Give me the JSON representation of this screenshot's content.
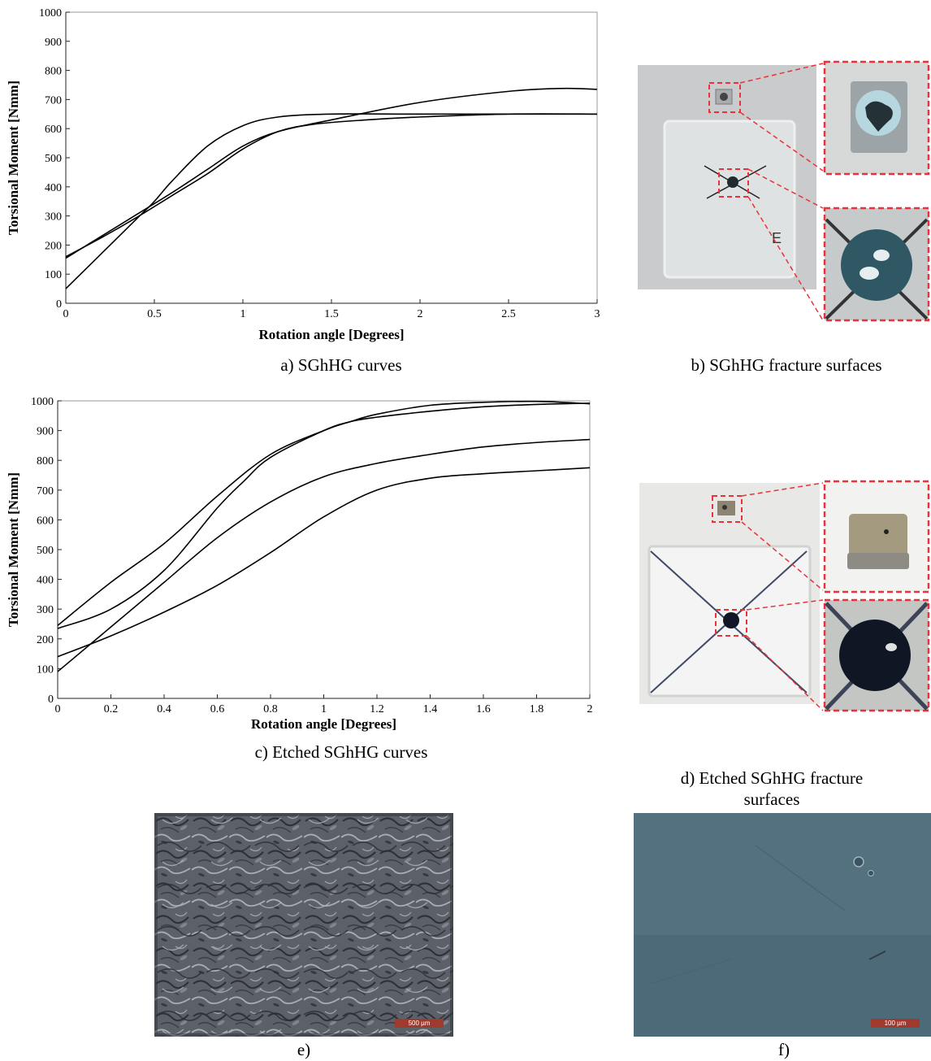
{
  "chart_data": [
    {
      "type": "line",
      "title": "",
      "xlabel": "Rotation angle [Degrees]",
      "ylabel": "Torsional Moment [Nmm]",
      "xlim": [
        0,
        3
      ],
      "ylim": [
        0,
        1000
      ],
      "xticks": [
        "0",
        "0.5",
        "1",
        "1.5",
        "2",
        "2.5",
        "3"
      ],
      "yticks": [
        "0",
        "100",
        "200",
        "300",
        "400",
        "500",
        "600",
        "700",
        "800",
        "900",
        "1000"
      ],
      "grid": false,
      "series": [
        {
          "x": [
            0,
            0.2,
            0.4,
            0.6,
            0.8,
            1.0,
            1.2,
            1.4,
            1.7,
            2.0,
            2.5,
            3.0
          ],
          "y": [
            160,
            225,
            295,
            370,
            445,
            530,
            590,
            615,
            630,
            640,
            650,
            650
          ]
        },
        {
          "x": [
            0,
            0.2,
            0.4,
            0.5,
            0.6,
            0.8,
            1.0,
            1.2,
            1.5,
            2.0,
            3.0
          ],
          "y": [
            50,
            170,
            290,
            350,
            420,
            540,
            610,
            640,
            650,
            650,
            650
          ]
        },
        {
          "x": [
            0,
            0.2,
            0.4,
            0.6,
            0.8,
            1.0,
            1.2,
            1.5,
            2.0,
            2.5,
            2.8,
            3.0
          ],
          "y": [
            155,
            230,
            305,
            380,
            460,
            540,
            590,
            630,
            690,
            728,
            738,
            735
          ]
        }
      ],
      "caption": "a) SGhHG curves"
    },
    {
      "type": "line",
      "title": "",
      "xlabel": "Rotation angle [Degrees]",
      "ylabel": "Torsional Moment [Nmm]",
      "xlim": [
        0,
        2
      ],
      "ylim": [
        0,
        1000
      ],
      "xticks": [
        "0",
        "0.2",
        "0.4",
        "0.6",
        "0.8",
        "1",
        "1.2",
        "1.4",
        "1.6",
        "1.8",
        "2"
      ],
      "yticks": [
        "0",
        "100",
        "200",
        "300",
        "400",
        "500",
        "600",
        "700",
        "800",
        "900",
        "1000"
      ],
      "grid": false,
      "series": [
        {
          "x": [
            0,
            0.2,
            0.4,
            0.6,
            0.8,
            1.0,
            1.1,
            1.2,
            1.4,
            1.6,
            1.8,
            2.0
          ],
          "y": [
            245,
            390,
            520,
            680,
            820,
            900,
            930,
            955,
            985,
            995,
            998,
            990
          ]
        },
        {
          "x": [
            0,
            0.2,
            0.4,
            0.6,
            0.7,
            0.8,
            1.0,
            1.1,
            1.2,
            1.4,
            1.6,
            1.8,
            2.0
          ],
          "y": [
            235,
            300,
            430,
            640,
            730,
            810,
            900,
            930,
            945,
            965,
            980,
            988,
            992
          ]
        },
        {
          "x": [
            0,
            0.2,
            0.4,
            0.6,
            0.8,
            1.0,
            1.2,
            1.4,
            1.6,
            1.8,
            2.0
          ],
          "y": [
            90,
            240,
            390,
            540,
            660,
            745,
            790,
            820,
            845,
            860,
            870
          ]
        },
        {
          "x": [
            0,
            0.2,
            0.4,
            0.6,
            0.8,
            1.0,
            1.2,
            1.4,
            1.6,
            1.8,
            2.0
          ],
          "y": [
            140,
            210,
            290,
            380,
            490,
            610,
            700,
            740,
            755,
            765,
            775
          ]
        }
      ],
      "caption": "c) Etched SGhHG curves"
    }
  ],
  "figures": {
    "b": {
      "caption": "b) SGhHG fracture surfaces",
      "mark_text": "E"
    },
    "d": {
      "caption_line1": "d) Etched SGhHG fracture",
      "caption_line2": "surfaces"
    },
    "e": {
      "caption": "e)",
      "scale_bar": "500 µm"
    },
    "f": {
      "caption": "f)",
      "scale_bar": "100 µm"
    }
  },
  "colors": {
    "curve": "#000000",
    "zoom_box": "#e8333a",
    "photo_background_b": "#c9cbcc",
    "specimen_coating": "#2f5864",
    "micro_e": "#5b6069",
    "micro_f": "#54717f",
    "scale_bar": "#a03a2e"
  }
}
